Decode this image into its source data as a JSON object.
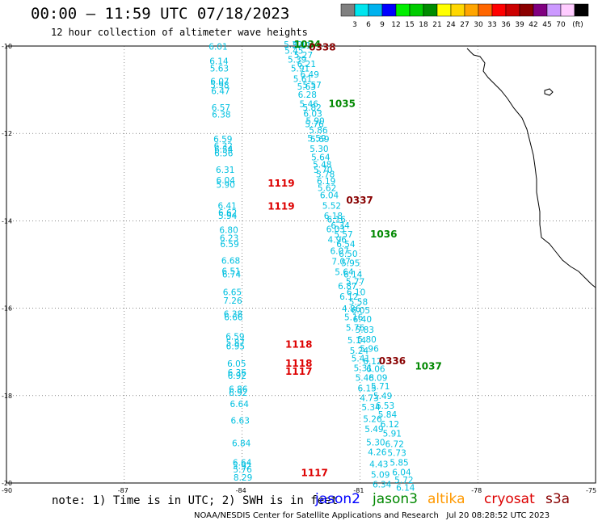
{
  "title": "00:00 — 11:59 UTC 07/18/2023",
  "subtitle": "12 hour collection of altimeter wave heights",
  "note": "note: 1) Time is in UTC; 2) SWH is in feet",
  "footer": "NOAA/NESDIS Center for Satellite Applications and Research   Jul 20 08:28:52 UTC 2023",
  "satellites": [
    {
      "name": "jason2",
      "color": "#0000ff"
    },
    {
      "name": "jason3",
      "color": "#008800"
    },
    {
      "name": "altika",
      "color": "#ff9900"
    },
    {
      "name": "cryosat",
      "color": "#dd0000"
    },
    {
      "name": "s3a",
      "color": "#880000"
    }
  ],
  "colorbar": {
    "colors": [
      "#808080",
      "#00e5ee",
      "#00b2ee",
      "#0000ff",
      "#00ee00",
      "#00cc00",
      "#008b00",
      "#ffff00",
      "#ffd700",
      "#ffa500",
      "#ff6600",
      "#ff0000",
      "#cc0000",
      "#8b0000",
      "#800080",
      "#cc99ff",
      "#ffccff",
      "#000000"
    ],
    "labels": [
      "3",
      "6",
      "9",
      "12",
      "15",
      "18",
      "21",
      "24",
      "27",
      "30",
      "33",
      "36",
      "39",
      "42",
      "45",
      "70",
      "(ft)"
    ]
  },
  "axes": {
    "lat_labels": [
      "-10",
      "-12",
      "-14",
      "-16",
      "-18",
      "-20"
    ],
    "lon_labels": [
      "-90",
      "-87",
      "-84",
      "-81",
      "-78",
      "-75"
    ]
  },
  "observation_color": "#00c0e0",
  "tracks": [
    {
      "pass": "left-track",
      "points": [
        {
          "lon": -84.85,
          "lat": -10.08,
          "v": "6.01"
        },
        {
          "lon": -84.83,
          "lat": -10.42,
          "v": "6.14"
        },
        {
          "lon": -84.82,
          "lat": -10.58,
          "v": "5.63"
        },
        {
          "lon": -84.81,
          "lat": -10.88,
          "v": "6.07"
        },
        {
          "lon": -84.81,
          "lat": -10.96,
          "v": "5.98"
        },
        {
          "lon": -84.79,
          "lat": -11.1,
          "v": "6.47"
        },
        {
          "lon": -84.78,
          "lat": -11.48,
          "v": "6.57"
        },
        {
          "lon": -84.77,
          "lat": -11.64,
          "v": "6.38"
        },
        {
          "lon": -84.73,
          "lat": -12.2,
          "v": "6.59"
        },
        {
          "lon": -84.72,
          "lat": -12.36,
          "v": "6.32"
        },
        {
          "lon": -84.71,
          "lat": -12.44,
          "v": "6.54"
        },
        {
          "lon": -84.71,
          "lat": -12.52,
          "v": "6.56"
        },
        {
          "lon": -84.67,
          "lat": -12.9,
          "v": "6.31"
        },
        {
          "lon": -84.66,
          "lat": -13.14,
          "v": "6.04"
        },
        {
          "lon": -84.66,
          "lat": -13.24,
          "v": "5.90"
        },
        {
          "lon": -84.62,
          "lat": -13.72,
          "v": "6.41"
        },
        {
          "lon": -84.61,
          "lat": -13.88,
          "v": "6.62"
        },
        {
          "lon": -84.61,
          "lat": -13.96,
          "v": "5.94"
        },
        {
          "lon": -84.58,
          "lat": -14.28,
          "v": "6.80"
        },
        {
          "lon": -84.57,
          "lat": -14.46,
          "v": "6.23"
        },
        {
          "lon": -84.56,
          "lat": -14.6,
          "v": "6.59"
        },
        {
          "lon": -84.53,
          "lat": -14.98,
          "v": "6.68"
        },
        {
          "lon": -84.52,
          "lat": -15.22,
          "v": "6.51"
        },
        {
          "lon": -84.51,
          "lat": -15.3,
          "v": "6.74"
        },
        {
          "lon": -84.49,
          "lat": -15.7,
          "v": "6.65"
        },
        {
          "lon": -84.48,
          "lat": -15.9,
          "v": "7.26"
        },
        {
          "lon": -84.47,
          "lat": -16.2,
          "v": "6.38"
        },
        {
          "lon": -84.46,
          "lat": -16.28,
          "v": "6.66"
        },
        {
          "lon": -84.42,
          "lat": -16.72,
          "v": "6.59"
        },
        {
          "lon": -84.41,
          "lat": -16.86,
          "v": "5.87"
        },
        {
          "lon": -84.41,
          "lat": -16.94,
          "v": "6.95"
        },
        {
          "lon": -84.38,
          "lat": -17.34,
          "v": "6.05"
        },
        {
          "lon": -84.37,
          "lat": -17.54,
          "v": "6.36"
        },
        {
          "lon": -84.37,
          "lat": -17.62,
          "v": "6.92"
        },
        {
          "lon": -84.34,
          "lat": -17.92,
          "v": "6.86"
        },
        {
          "lon": -84.34,
          "lat": -18.0,
          "v": "6.92"
        },
        {
          "lon": -84.31,
          "lat": -18.26,
          "v": "6.64"
        },
        {
          "lon": -84.29,
          "lat": -18.64,
          "v": "6.63"
        },
        {
          "lon": -84.26,
          "lat": -19.16,
          "v": "6.84"
        },
        {
          "lon": -84.24,
          "lat": -19.6,
          "v": "6.64"
        },
        {
          "lon": -84.24,
          "lat": -19.68,
          "v": "5.92"
        },
        {
          "lon": -84.23,
          "lat": -19.76,
          "v": "5.76"
        },
        {
          "lon": -84.22,
          "lat": -19.94,
          "v": "8.29"
        }
      ]
    },
    {
      "pass": "middle-track",
      "points": [
        {
          "lon": -82.94,
          "lat": -10.04,
          "v": "5.32"
        },
        {
          "lon": -82.72,
          "lat": -10.06,
          "v": "5.11"
        },
        {
          "lon": -82.92,
          "lat": -10.18,
          "v": "5.45"
        },
        {
          "lon": -82.68,
          "lat": -10.28,
          "v": "5.27"
        },
        {
          "lon": -82.84,
          "lat": -10.38,
          "v": "5.39"
        },
        {
          "lon": -82.6,
          "lat": -10.48,
          "v": "6.21"
        },
        {
          "lon": -82.76,
          "lat": -10.58,
          "v": "5.91"
        },
        {
          "lon": -82.52,
          "lat": -10.72,
          "v": "6.49"
        },
        {
          "lon": -82.7,
          "lat": -10.82,
          "v": "5.61"
        },
        {
          "lon": -82.46,
          "lat": -10.96,
          "v": "5.57"
        },
        {
          "lon": -82.6,
          "lat": -11.0,
          "v": "5.63"
        },
        {
          "lon": -82.58,
          "lat": -11.18,
          "v": "6.28"
        },
        {
          "lon": -82.54,
          "lat": -11.4,
          "v": "5.46"
        },
        {
          "lon": -82.46,
          "lat": -11.48,
          "v": "5.82"
        },
        {
          "lon": -82.44,
          "lat": -11.62,
          "v": "6.03"
        },
        {
          "lon": -82.38,
          "lat": -11.78,
          "v": "5.90"
        },
        {
          "lon": -82.4,
          "lat": -11.86,
          "v": "5.76"
        },
        {
          "lon": -82.3,
          "lat": -12.0,
          "v": "5.86"
        },
        {
          "lon": -82.34,
          "lat": -12.18,
          "v": "5.59"
        },
        {
          "lon": -82.26,
          "lat": -12.2,
          "v": "5.69"
        },
        {
          "lon": -82.28,
          "lat": -12.42,
          "v": "5.30"
        },
        {
          "lon": -82.24,
          "lat": -12.62,
          "v": "5.64"
        },
        {
          "lon": -82.2,
          "lat": -12.78,
          "v": "5.48"
        },
        {
          "lon": -82.18,
          "lat": -12.9,
          "v": "5.70"
        },
        {
          "lon": -82.12,
          "lat": -13.0,
          "v": "5.78"
        },
        {
          "lon": -82.1,
          "lat": -13.16,
          "v": "6.19"
        },
        {
          "lon": -82.08,
          "lat": -13.32,
          "v": "5.62"
        },
        {
          "lon": -82.02,
          "lat": -13.48,
          "v": "6.04"
        },
        {
          "lon": -81.96,
          "lat": -13.72,
          "v": "5.52"
        },
        {
          "lon": -81.92,
          "lat": -13.96,
          "v": "6.18"
        },
        {
          "lon": -81.84,
          "lat": -14.04,
          "v": "6.16"
        },
        {
          "lon": -81.74,
          "lat": -14.18,
          "v": "6.34"
        },
        {
          "lon": -81.86,
          "lat": -14.26,
          "v": "6.03"
        },
        {
          "lon": -81.66,
          "lat": -14.38,
          "v": "5.57"
        },
        {
          "lon": -81.82,
          "lat": -14.5,
          "v": "4.96"
        },
        {
          "lon": -81.6,
          "lat": -14.6,
          "v": "6.54"
        },
        {
          "lon": -81.76,
          "lat": -14.76,
          "v": "6.07"
        },
        {
          "lon": -81.54,
          "lat": -14.82,
          "v": "6.50"
        },
        {
          "lon": -81.72,
          "lat": -15.0,
          "v": "7.07"
        },
        {
          "lon": -81.48,
          "lat": -15.04,
          "v": "5.95"
        },
        {
          "lon": -81.64,
          "lat": -15.24,
          "v": "5.64"
        },
        {
          "lon": -81.42,
          "lat": -15.3,
          "v": "6.14"
        },
        {
          "lon": -81.56,
          "lat": -15.56,
          "v": "6.87"
        },
        {
          "lon": -81.36,
          "lat": -15.46,
          "v": "5.77"
        },
        {
          "lon": -81.34,
          "lat": -15.7,
          "v": "6.10"
        },
        {
          "lon": -81.52,
          "lat": -15.8,
          "v": "6.12"
        },
        {
          "lon": -81.28,
          "lat": -15.92,
          "v": "5.58"
        },
        {
          "lon": -81.46,
          "lat": -16.08,
          "v": "4.86"
        },
        {
          "lon": -81.22,
          "lat": -16.12,
          "v": "6.05"
        },
        {
          "lon": -81.4,
          "lat": -16.28,
          "v": "5.16"
        },
        {
          "lon": -81.18,
          "lat": -16.32,
          "v": "6.40"
        },
        {
          "lon": -81.36,
          "lat": -16.52,
          "v": "5.76"
        },
        {
          "lon": -81.12,
          "lat": -16.56,
          "v": "5.83"
        },
        {
          "lon": -81.32,
          "lat": -16.8,
          "v": "5.14"
        },
        {
          "lon": -81.06,
          "lat": -16.78,
          "v": "5.80"
        },
        {
          "lon": -81.26,
          "lat": -17.04,
          "v": "5.24"
        },
        {
          "lon": -81.0,
          "lat": -17.0,
          "v": "5.96"
        },
        {
          "lon": -81.22,
          "lat": -17.22,
          "v": "5.41"
        },
        {
          "lon": -80.92,
          "lat": -17.28,
          "v": "6.12"
        },
        {
          "lon": -81.16,
          "lat": -17.44,
          "v": "5.31"
        },
        {
          "lon": -80.84,
          "lat": -17.46,
          "v": "6.06"
        },
        {
          "lon": -81.12,
          "lat": -17.66,
          "v": "5.48"
        },
        {
          "lon": -80.78,
          "lat": -17.66,
          "v": "6.09"
        },
        {
          "lon": -81.06,
          "lat": -17.9,
          "v": "6.15"
        },
        {
          "lon": -80.72,
          "lat": -17.86,
          "v": "5.71"
        },
        {
          "lon": -81.0,
          "lat": -18.12,
          "v": "4.73"
        },
        {
          "lon": -80.66,
          "lat": -18.08,
          "v": "5.49"
        },
        {
          "lon": -80.96,
          "lat": -18.34,
          "v": "5.34"
        },
        {
          "lon": -80.6,
          "lat": -18.3,
          "v": "6.53"
        },
        {
          "lon": -80.92,
          "lat": -18.6,
          "v": "5.26"
        },
        {
          "lon": -80.54,
          "lat": -18.5,
          "v": "5.84"
        },
        {
          "lon": -80.88,
          "lat": -18.84,
          "v": "5.49"
        },
        {
          "lon": -80.48,
          "lat": -18.72,
          "v": "6.12"
        },
        {
          "lon": -80.84,
          "lat": -19.14,
          "v": "5.30"
        },
        {
          "lon": -80.42,
          "lat": -18.94,
          "v": "5.91"
        },
        {
          "lon": -80.8,
          "lat": -19.36,
          "v": "4.26"
        },
        {
          "lon": -80.36,
          "lat": -19.18,
          "v": "6.72"
        },
        {
          "lon": -80.3,
          "lat": -19.38,
          "v": "5.73"
        },
        {
          "lon": -80.76,
          "lat": -19.64,
          "v": "4.43"
        },
        {
          "lon": -80.24,
          "lat": -19.6,
          "v": "5.85"
        },
        {
          "lon": -80.72,
          "lat": -19.88,
          "v": "5.09"
        },
        {
          "lon": -80.18,
          "lat": -19.82,
          "v": "6.04"
        },
        {
          "lon": -80.68,
          "lat": -20.1,
          "v": "6.34"
        },
        {
          "lon": -80.12,
          "lat": -20.0,
          "v": "5.72"
        },
        {
          "lon": -80.08,
          "lat": -20.18,
          "v": "6.14"
        }
      ]
    }
  ],
  "pass_labels": [
    {
      "text": "1034",
      "lon": -82.68,
      "lat": -10.04,
      "sat": "jason3"
    },
    {
      "text": "0338",
      "lon": -82.3,
      "lat": -10.1,
      "sat": "s3a"
    },
    {
      "text": "1035",
      "lon": -81.8,
      "lat": -11.4,
      "sat": "jason3"
    },
    {
      "text": "1119",
      "lon": -83.35,
      "lat": -13.22,
      "sat": "cryosat"
    },
    {
      "text": "0337",
      "lon": -81.35,
      "lat": -13.6,
      "sat": "s3a"
    },
    {
      "text": "1119",
      "lon": -83.35,
      "lat": -13.74,
      "sat": "cryosat"
    },
    {
      "text": "1036",
      "lon": -80.74,
      "lat": -14.38,
      "sat": "jason3"
    },
    {
      "text": "1118",
      "lon": -82.9,
      "lat": -16.9,
      "sat": "cryosat"
    },
    {
      "text": "0336",
      "lon": -80.52,
      "lat": -17.28,
      "sat": "s3a"
    },
    {
      "text": "1118",
      "lon": -82.9,
      "lat": -17.34,
      "sat": "cryosat"
    },
    {
      "text": "1037",
      "lon": -79.6,
      "lat": -17.4,
      "sat": "jason3"
    },
    {
      "text": "1117",
      "lon": -82.9,
      "lat": -17.52,
      "sat": "cryosat"
    },
    {
      "text": "1117",
      "lon": -82.5,
      "lat": -19.84,
      "sat": "cryosat"
    }
  ]
}
